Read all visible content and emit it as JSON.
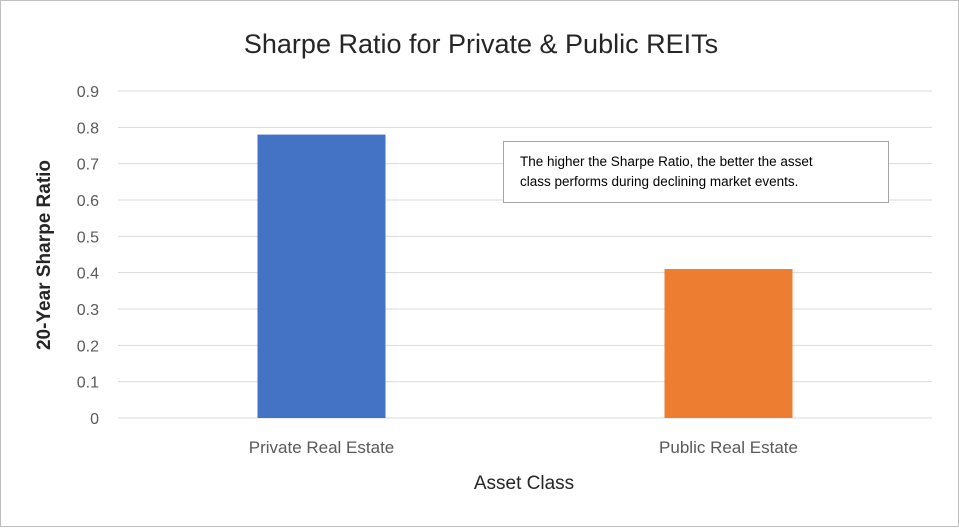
{
  "chart_data": {
    "type": "bar",
    "title": "Sharpe Ratio for Private & Public REITs",
    "xlabel": "Asset Class",
    "ylabel": "20-Year Sharpe Ratio",
    "categories": [
      "Private Real Estate",
      "Public Real Estate"
    ],
    "values": [
      0.78,
      0.41
    ],
    "bar_colors": [
      "#4472c4",
      "#ed7d31"
    ],
    "ylim": [
      0,
      0.9
    ],
    "yticks": [
      "0",
      "0.1",
      "0.2",
      "0.3",
      "0.4",
      "0.5",
      "0.6",
      "0.7",
      "0.8",
      "0.9"
    ],
    "grid": true,
    "legend": "none",
    "annotation": {
      "lines": [
        "The higher the Sharpe Ratio, the better the asset",
        "class performs during declining market events."
      ]
    }
  }
}
